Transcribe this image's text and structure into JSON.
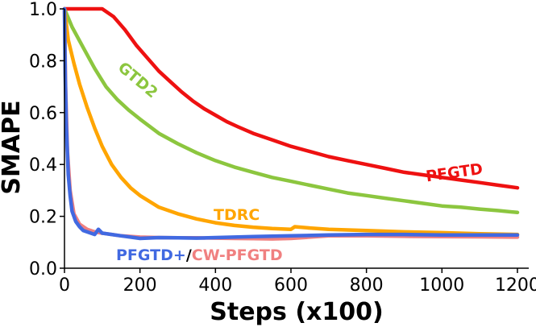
{
  "chart_data": {
    "type": "line",
    "title": "",
    "xlabel": "Steps (x100)",
    "ylabel": "SMAPE",
    "xlim": [
      0,
      1230
    ],
    "ylim": [
      0,
      1.0
    ],
    "x_ticks": [
      "0",
      "200",
      "400",
      "600",
      "800",
      "1000",
      "1200"
    ],
    "y_ticks": [
      "0.0",
      "0.2",
      "0.4",
      "0.6",
      "0.8",
      "1.0"
    ],
    "grid": false,
    "legend": "none",
    "annotations": {
      "pfgtd": "PFGTD",
      "gtd2": "GTD2",
      "tdrc": "TDRC",
      "pfgtd_plus": "PFGTD+",
      "separator": "/",
      "cw_pfgtd": "CW-PFGTD"
    },
    "series": [
      {
        "name": "PFGTD",
        "color": "#ee1111",
        "x": [
          0,
          50,
          100,
          130,
          160,
          190,
          220,
          250,
          280,
          310,
          340,
          370,
          400,
          430,
          460,
          500,
          550,
          600,
          650,
          700,
          750,
          800,
          850,
          900,
          950,
          1000,
          1050,
          1100,
          1150,
          1200
        ],
        "y": [
          1.0,
          1.0,
          1.0,
          0.97,
          0.92,
          0.86,
          0.81,
          0.76,
          0.72,
          0.68,
          0.645,
          0.615,
          0.59,
          0.565,
          0.545,
          0.52,
          0.495,
          0.47,
          0.45,
          0.43,
          0.415,
          0.4,
          0.385,
          0.37,
          0.36,
          0.35,
          0.34,
          0.33,
          0.32,
          0.31
        ]
      },
      {
        "name": "GTD2",
        "color": "#8cc63f",
        "x": [
          0,
          20,
          50,
          80,
          110,
          140,
          170,
          200,
          250,
          300,
          350,
          400,
          450,
          500,
          550,
          600,
          650,
          700,
          750,
          800,
          850,
          900,
          950,
          1000,
          1050,
          1100,
          1150,
          1200
        ],
        "y": [
          1.0,
          0.93,
          0.85,
          0.77,
          0.7,
          0.65,
          0.61,
          0.575,
          0.52,
          0.48,
          0.445,
          0.415,
          0.39,
          0.37,
          0.35,
          0.335,
          0.32,
          0.305,
          0.29,
          0.28,
          0.27,
          0.26,
          0.25,
          0.24,
          0.235,
          0.228,
          0.222,
          0.215
        ]
      },
      {
        "name": "TDRC",
        "color": "#ffa500",
        "x": [
          0,
          10,
          25,
          40,
          60,
          80,
          100,
          125,
          150,
          175,
          200,
          250,
          300,
          350,
          400,
          450,
          500,
          550,
          600,
          610,
          650,
          700,
          800,
          900,
          1000,
          1100,
          1200
        ],
        "y": [
          1.0,
          0.88,
          0.79,
          0.71,
          0.62,
          0.54,
          0.47,
          0.4,
          0.35,
          0.31,
          0.28,
          0.235,
          0.21,
          0.19,
          0.175,
          0.165,
          0.158,
          0.153,
          0.15,
          0.16,
          0.155,
          0.15,
          0.145,
          0.14,
          0.137,
          0.133,
          0.13
        ]
      },
      {
        "name": "CW-PFGTD",
        "color": "#f08080",
        "x": [
          0,
          3,
          8,
          15,
          25,
          40,
          60,
          80,
          100,
          150,
          200,
          250,
          300,
          350,
          400,
          450,
          500,
          550,
          600,
          650,
          700,
          800,
          900,
          1000,
          1100,
          1200
        ],
        "y": [
          1.0,
          0.7,
          0.45,
          0.3,
          0.21,
          0.17,
          0.15,
          0.14,
          0.135,
          0.125,
          0.12,
          0.118,
          0.117,
          0.117,
          0.116,
          0.115,
          0.114,
          0.113,
          0.115,
          0.12,
          0.125,
          0.125,
          0.123,
          0.122,
          0.121,
          0.12
        ]
      },
      {
        "name": "PFGTD+",
        "color": "#4169e1",
        "x": [
          0,
          2,
          5,
          10,
          15,
          20,
          30,
          40,
          50,
          60,
          70,
          80,
          90,
          100,
          125,
          150,
          175,
          200,
          250,
          300,
          350,
          400,
          450,
          500,
          600,
          700,
          800,
          900,
          1000,
          1100,
          1200
        ],
        "y": [
          1.0,
          0.75,
          0.55,
          0.36,
          0.28,
          0.22,
          0.18,
          0.16,
          0.145,
          0.14,
          0.135,
          0.13,
          0.15,
          0.135,
          0.13,
          0.125,
          0.12,
          0.115,
          0.118,
          0.117,
          0.116,
          0.118,
          0.12,
          0.122,
          0.125,
          0.128,
          0.13,
          0.13,
          0.128,
          0.128,
          0.128
        ]
      }
    ]
  }
}
